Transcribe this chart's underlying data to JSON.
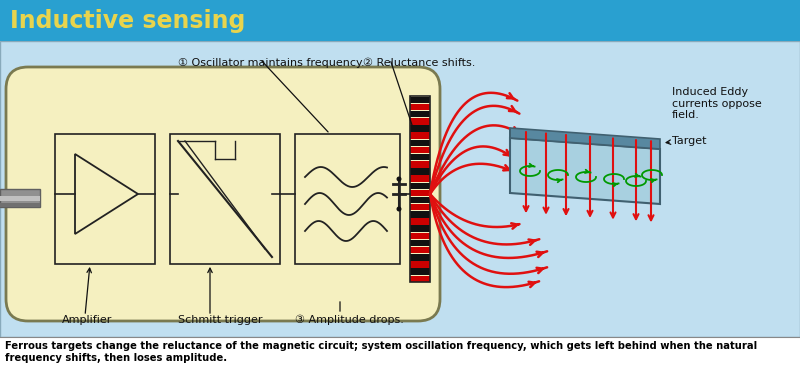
{
  "title": "Inductive sensing",
  "title_color": "#e8d44d",
  "title_bg": "#29a0d0",
  "bg_color": "#c0dff0",
  "bottom_text": "Ferrous targets change the reluctance of the magnetic circuit; system oscillation frequency, which gets left behind when the natural\nfrequency shifts, then loses amplitude.",
  "label1": "① Oscillator maintains frequency.",
  "label2": "② Reluctance shifts.",
  "label3": "③ Amplitude drops.",
  "label_amplifier": "Amplifier",
  "label_schmitt": "Schmitt trigger",
  "label_eddy": "Induced Eddy\ncurrents oppose\nfield.",
  "label_target": "Target",
  "sensor_fill": "#f5f0c0",
  "sensor_outline": "#7a7a50",
  "target_top": "#90c0d0",
  "target_side": "#5090a0",
  "red_col": "#e01010",
  "green_col": "#009900",
  "text_col": "#111111"
}
